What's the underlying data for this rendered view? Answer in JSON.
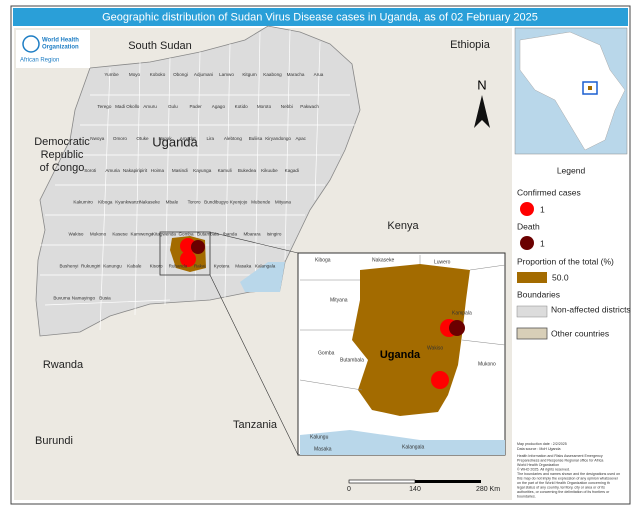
{
  "header": {
    "title": "Geographic distribution of Sudan Virus Disease cases in Uganda, as of 02 February 2025"
  },
  "logo": {
    "line1": "World Health",
    "line2": "Organization",
    "region": "African Region"
  },
  "countries": [
    "South Sudan",
    "Ethiopia",
    "Democratic Republic of Congo",
    "Uganda",
    "Kenya",
    "Rwanda",
    "Burundi",
    "Tanzania"
  ],
  "districts": [
    "Yumbe",
    "Moyo",
    "Koboko",
    "Obongi",
    "Adjumani",
    "Lamwo",
    "Kitgum",
    "Kaabong",
    "Maracha",
    "Arua",
    "Terego",
    "Madi Okollo",
    "Amuru",
    "Gulu",
    "Pader",
    "Agago",
    "Kotido",
    "Moroto",
    "Nebbi",
    "Pakwach",
    "Nwoya",
    "Omoro",
    "Otuke",
    "Napak",
    "Amudat",
    "Lira",
    "Alebtong",
    "Buliisa",
    "Kiryandongo",
    "Apac",
    "Soroti",
    "Amuria",
    "Nakapiripirit",
    "Hoima",
    "Masindi",
    "Kayunga",
    "Kamuli",
    "Bukedea",
    "Kikuube",
    "Kagadi",
    "Kakumiro",
    "Kiboga",
    "Kyankwanzi",
    "Nakaseke",
    "Mbale",
    "Tororo",
    "Bundibugyo",
    "Kyenjojo",
    "Mubende",
    "Mityana",
    "Wakiso",
    "Mukono",
    "Kasese",
    "Kamwenge",
    "Kitagwenda",
    "Gomba",
    "Butambala",
    "Ibanda",
    "Mbarara",
    "Isingiro",
    "Bushenyi",
    "Rukungiri",
    "Kanungu",
    "Kabale",
    "Kisoro",
    "Rubanda",
    "Rakai",
    "Kyotera",
    "Masaka",
    "Kalangala",
    "Buvuma",
    "Namayingo",
    "Busia"
  ],
  "inset": {
    "labels": [
      "Kiboga",
      "Nakaseke",
      "Luwero",
      "Mityana",
      "Kampala",
      "Wakiso",
      "Mukono",
      "Gomba",
      "Butambala",
      "Kalungu",
      "Masaka",
      "Kalangala"
    ],
    "country": "Uganda"
  },
  "north": "N",
  "legend": {
    "title": "Legend",
    "cases_title": "Confirmed cases",
    "cases_value": "1",
    "deaths_title": "Death",
    "deaths_value": "1",
    "proportion_title": "Proportion of the total (%)",
    "proportion_value": "50.0",
    "boundaries_title": "Boundaries",
    "non_affected": "Non-affected districts",
    "other_countries": "Other countries"
  },
  "footer": {
    "production_date": "Map production date : 2/2/2025",
    "source": "Data source : MoH Uganda",
    "notes": [
      "Health Information and Risks Assessment Emergency",
      "Preparedness and Response Regional office for Africa",
      "World Health Organization",
      "© WHO 2025. All rights reserved.",
      "The boundaries and names shown and the designations used on",
      "this map do not imply the expression of any opinion whatsoever",
      "on the part of the World Health Organization concerning th",
      "legal status of any country, territory, city or area or of its",
      "authorities, or concerning the delimitation of its frontiers or",
      "boundaries."
    ]
  },
  "scale": {
    "ticks": [
      "0",
      "140",
      "280 Km"
    ]
  }
}
